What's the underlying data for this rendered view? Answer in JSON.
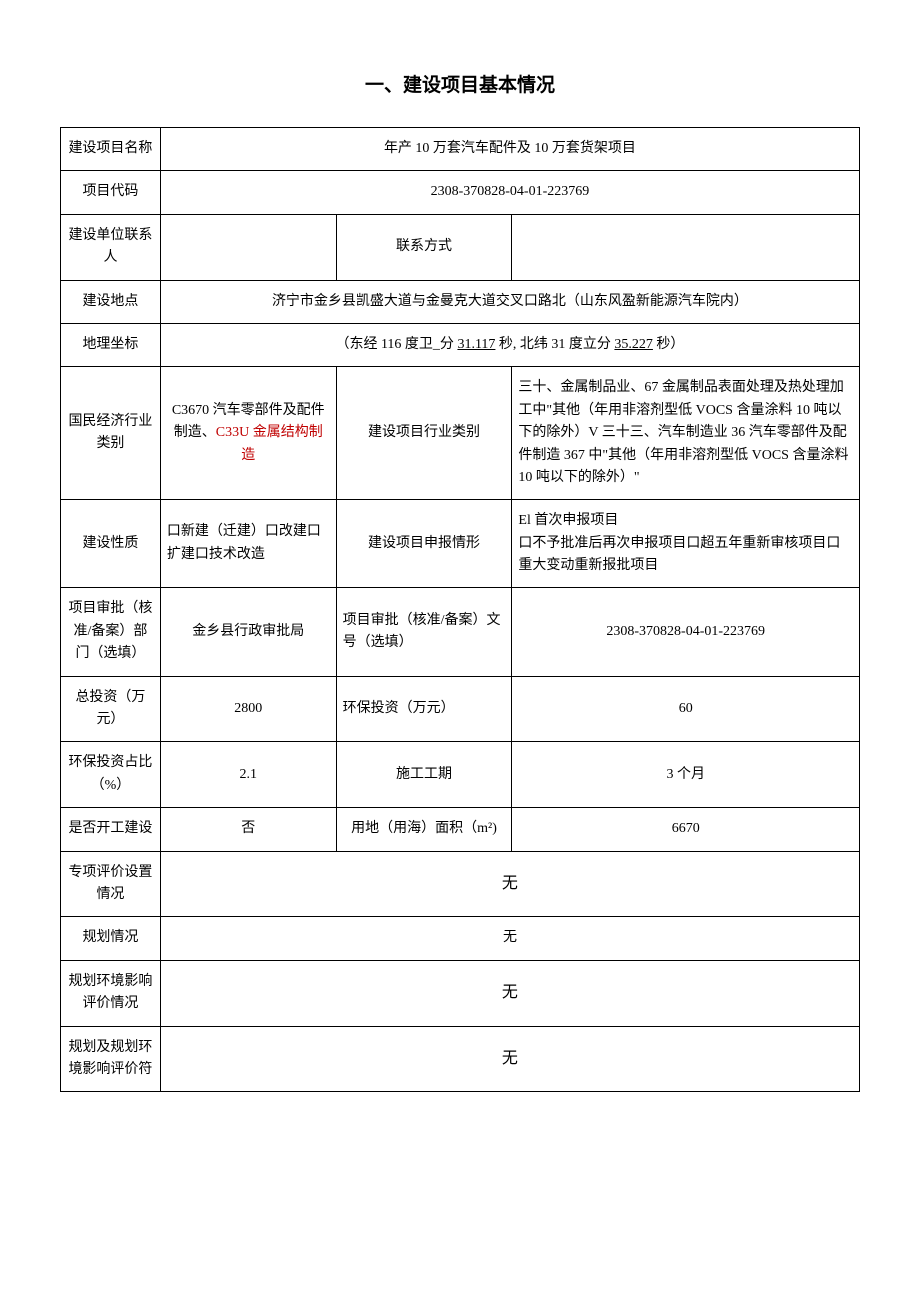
{
  "title": "一、建设项目基本情况",
  "rows": {
    "project_name": {
      "label": "建设项目名称",
      "value": "年产 10 万套汽车配件及 10 万套货架项目"
    },
    "project_code": {
      "label": "项目代码",
      "value": "2308-370828-04-01-223769"
    },
    "builder_contact": {
      "label": "建设单位联系人",
      "value": ""
    },
    "contact_method": {
      "label": "联系方式",
      "value": ""
    },
    "location": {
      "label": "建设地点",
      "value": "济宁市金乡县凯盛大道与金曼克大道交叉口路北（山东风盈新能源汽车院内）"
    },
    "coords": {
      "label": "地理坐标",
      "prefix": "（东经 116 度卫_分 ",
      "sec1": "31.117",
      "mid": " 秒, 北纬 31 度立分 ",
      "sec2": "35.227",
      "suffix": " 秒）"
    },
    "economy_category": {
      "label": "国民经济行业类别",
      "v1a": "C3670 汽车零部件及配件制造、",
      "v1b": "C33U 金属结构制造",
      "label2": "建设项目行业类别",
      "v2": "三十、金属制品业、67 金属制品表面处理及热处理加工中\"其他（年用非溶剂型低 VOCS 含量涂料 10 吨以下的除外）V 三十三、汽车制造业 36 汽车零部件及配件制造 367 中\"其他（年用非溶剂型低 VOCS 含量涂料 10 吨以下的除外）\""
    },
    "build_nature": {
      "label": "建设性质",
      "v1": "口新建（迁建）口改建口扩建口技术改造",
      "label2": "建设项目申报情形",
      "v2": "El 首次申报项目\n口不予批准后再次申报项目口超五年重新审核项目口重大变动重新报批项目"
    },
    "approval_dept": {
      "label": "项目审批（核准/备案）部门（选填）",
      "v1": "金乡县行政审批局",
      "label2": "项目审批（核准/备案）文号（选填）",
      "v2": "2308-370828-04-01-223769"
    },
    "total_invest": {
      "label": "总投资（万元）",
      "v1": "2800",
      "label2": "环保投资（万元）",
      "v2": "60"
    },
    "env_ratio": {
      "label": "环保投资占比（%）",
      "v1": "2.1",
      "label2": "施工工期",
      "v2": "3 个月"
    },
    "started": {
      "label": "是否开工建设",
      "v1": "否",
      "label2": "用地（用海）面积（m²)",
      "v2": "6670"
    },
    "special_eval": {
      "label": "专项评价设置情况",
      "value": "无"
    },
    "planning": {
      "label": "规划情况",
      "value": "无"
    },
    "plan_env": {
      "label": "规划环境影响评价情况",
      "value": "无"
    },
    "plan_env_conform": {
      "label": "规划及规划环境影响评价符",
      "value": "无"
    }
  }
}
